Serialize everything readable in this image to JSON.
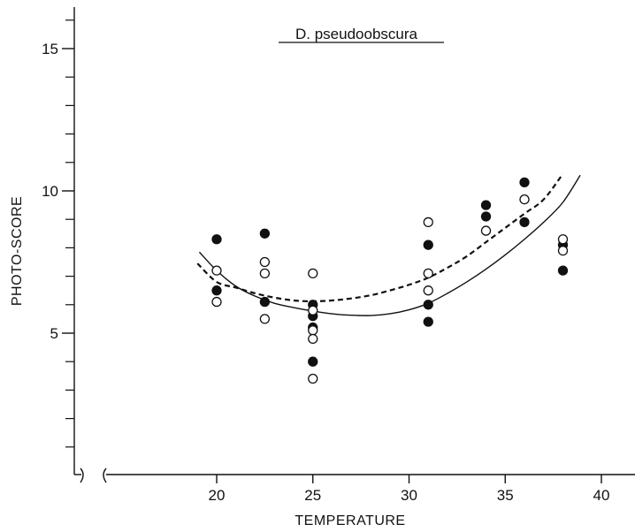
{
  "chart_data": {
    "type": "scatter",
    "title": "D. pseudoobscura",
    "xlabel": "TEMPERATURE",
    "ylabel": "PHOTO-SCORE",
    "xlim": [
      19,
      41
    ],
    "ylim": [
      0,
      16.5
    ],
    "x_ticks": [
      20,
      25,
      30,
      35,
      40
    ],
    "y_ticks": [
      5,
      10,
      15
    ],
    "y_minor_ticks": [
      1,
      2,
      3,
      4,
      6,
      7,
      8,
      9,
      11,
      12,
      13,
      14,
      16
    ],
    "grid": false,
    "axis_break_x": true,
    "series": [
      {
        "marker": "filled-circle",
        "color": "#111111",
        "points": [
          [
            20,
            8.3
          ],
          [
            20,
            6.5
          ],
          [
            22.5,
            8.5
          ],
          [
            22.5,
            6.1
          ],
          [
            25,
            6.0
          ],
          [
            25,
            5.6
          ],
          [
            25,
            5.2
          ],
          [
            25,
            4.0
          ],
          [
            31,
            8.1
          ],
          [
            31,
            6.0
          ],
          [
            31,
            5.4
          ],
          [
            34,
            9.5
          ],
          [
            34,
            9.1
          ],
          [
            36,
            10.3
          ],
          [
            36,
            8.9
          ],
          [
            38,
            8.1
          ],
          [
            38,
            7.2
          ]
        ]
      },
      {
        "marker": "open-circle",
        "color": "#111111",
        "points": [
          [
            20,
            7.2
          ],
          [
            20,
            6.1
          ],
          [
            22.5,
            7.5
          ],
          [
            22.5,
            7.1
          ],
          [
            22.5,
            5.5
          ],
          [
            25,
            7.1
          ],
          [
            25,
            5.8
          ],
          [
            25,
            5.1
          ],
          [
            25,
            4.8
          ],
          [
            25,
            3.4
          ],
          [
            31,
            8.9
          ],
          [
            31,
            7.1
          ],
          [
            31,
            6.5
          ],
          [
            34,
            8.6
          ],
          [
            36,
            9.7
          ],
          [
            38,
            8.3
          ],
          [
            38,
            7.9
          ]
        ]
      },
      {
        "type": "line",
        "style": "dashed",
        "color": "#111111",
        "points": [
          [
            19,
            7.45
          ],
          [
            20,
            6.8
          ],
          [
            21,
            6.6
          ],
          [
            22,
            6.4
          ],
          [
            23,
            6.25
          ],
          [
            24,
            6.15
          ],
          [
            25,
            6.12
          ],
          [
            26,
            6.15
          ],
          [
            27,
            6.22
          ],
          [
            28,
            6.33
          ],
          [
            29,
            6.5
          ],
          [
            30,
            6.7
          ],
          [
            31,
            6.95
          ],
          [
            32,
            7.3
          ],
          [
            33,
            7.7
          ],
          [
            34,
            8.2
          ],
          [
            35,
            8.7
          ],
          [
            36,
            9.2
          ],
          [
            37,
            9.7
          ],
          [
            38,
            10.6
          ]
        ]
      },
      {
        "type": "line",
        "style": "solid",
        "color": "#111111",
        "points": [
          [
            19.1,
            7.85
          ],
          [
            20,
            7.2
          ],
          [
            21,
            6.65
          ],
          [
            22,
            6.3
          ],
          [
            23,
            6.05
          ],
          [
            24,
            5.9
          ],
          [
            25,
            5.78
          ],
          [
            26,
            5.68
          ],
          [
            27,
            5.63
          ],
          [
            28,
            5.62
          ],
          [
            29,
            5.68
          ],
          [
            30,
            5.82
          ],
          [
            31,
            6.05
          ],
          [
            32,
            6.4
          ],
          [
            33,
            6.8
          ],
          [
            34,
            7.25
          ],
          [
            35,
            7.75
          ],
          [
            36,
            8.3
          ],
          [
            37,
            8.9
          ],
          [
            38,
            9.6
          ],
          [
            38.9,
            10.55
          ]
        ]
      }
    ]
  }
}
